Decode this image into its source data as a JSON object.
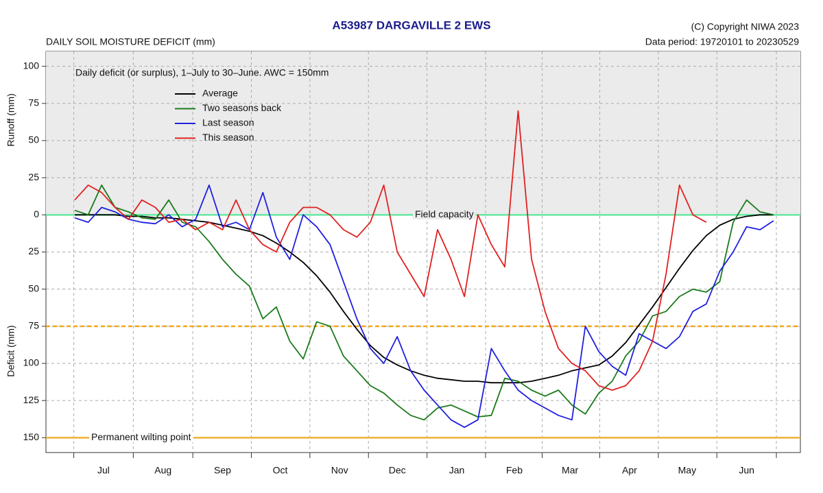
{
  "chart_data": {
    "type": "line",
    "title": "A53987  DARGAVILLE 2 EWS",
    "subtitle": "DAILY SOIL MOISTURE DEFICIT (mm)",
    "copyright": "(C) Copyright NIWA  2023",
    "data_period": "Data period:  19720101  to  20230529",
    "annotation": "Daily deficit (or surplus), 1–July to 30–June.  AWC = 150mm",
    "y_label_top": "Runoff (mm)",
    "y_label_bottom": "Deficit (mm)",
    "xlim": [
      -15,
      378
    ],
    "ylim": [
      -160,
      110
    ],
    "xticks": [
      {
        "value": 15,
        "label": "Jul"
      },
      {
        "value": 46,
        "label": "Aug"
      },
      {
        "value": 77,
        "label": "Sep"
      },
      {
        "value": 107,
        "label": "Oct"
      },
      {
        "value": 138,
        "label": "Nov"
      },
      {
        "value": 168,
        "label": "Dec"
      },
      {
        "value": 199,
        "label": "Jan"
      },
      {
        "value": 229,
        "label": "Feb"
      },
      {
        "value": 258,
        "label": "Mar"
      },
      {
        "value": 289,
        "label": "Apr"
      },
      {
        "value": 319,
        "label": "May"
      },
      {
        "value": 350,
        "label": "Jun"
      }
    ],
    "yticks": [
      100,
      75,
      50,
      25,
      0,
      {
        "value": -25,
        "label": "25"
      },
      {
        "value": -50,
        "label": "50"
      },
      {
        "value": -75,
        "label": "75"
      },
      {
        "value": -100,
        "label": "100"
      },
      {
        "value": -125,
        "label": "125"
      },
      {
        "value": -150,
        "label": "150"
      }
    ],
    "grid": true,
    "reference_lines": [
      {
        "value": 0,
        "label": "Field capacity",
        "color": "#66e8a0",
        "style": "solid"
      },
      {
        "value": -75,
        "color": "#f0a818",
        "style": "dashed"
      },
      {
        "value": -150,
        "label": "Permanent wilting point",
        "color": "#f0b030",
        "style": "solid"
      }
    ],
    "x": [
      0,
      7,
      14,
      21,
      28,
      35,
      42,
      49,
      56,
      63,
      70,
      77,
      84,
      91,
      98,
      105,
      112,
      119,
      126,
      133,
      140,
      147,
      154,
      161,
      168,
      175,
      182,
      189,
      196,
      203,
      210,
      217,
      224,
      231,
      238,
      245,
      252,
      259,
      266,
      273,
      280,
      287,
      294,
      301,
      308,
      315,
      322,
      329,
      336,
      343,
      350,
      357,
      364
    ],
    "series": [
      {
        "name": "Average",
        "color": "#000000",
        "values": [
          0,
          0,
          0,
          0,
          -1,
          -1,
          -2,
          -2,
          -3,
          -4,
          -5,
          -7,
          -9,
          -11,
          -14,
          -19,
          -25,
          -32,
          -41,
          -52,
          -65,
          -77,
          -88,
          -96,
          -101,
          -105,
          -108,
          -110,
          -111,
          -112,
          -112,
          -113,
          -113,
          -113,
          -112,
          -110,
          -108,
          -105,
          -103,
          -101,
          -95,
          -86,
          -74,
          -62,
          -49,
          -36,
          -24,
          -14,
          -7,
          -3,
          -1,
          0,
          0
        ]
      },
      {
        "name": "Two seasons back",
        "color": "#1a7a1a",
        "values": [
          3,
          0,
          20,
          5,
          2,
          -2,
          -3,
          10,
          -5,
          -8,
          -18,
          -30,
          -40,
          -48,
          -70,
          -62,
          -85,
          -97,
          -72,
          -75,
          -95,
          -105,
          -115,
          -120,
          -128,
          -135,
          -138,
          -130,
          -128,
          -132,
          -136,
          -135,
          -110,
          -112,
          -118,
          -122,
          -118,
          -128,
          -134,
          -120,
          -112,
          -95,
          -85,
          -68,
          -65,
          -55,
          -50,
          -52,
          -45,
          -5,
          10,
          2,
          0
        ]
      },
      {
        "name": "Last season",
        "color": "#1f1fe0",
        "values": [
          -2,
          -5,
          5,
          2,
          -3,
          -5,
          -6,
          0,
          -8,
          -3,
          20,
          -8,
          -5,
          -10,
          15,
          -15,
          -30,
          0,
          -8,
          -20,
          -45,
          -70,
          -90,
          -100,
          -82,
          -105,
          -118,
          -128,
          -138,
          -143,
          -138,
          -90,
          -105,
          -118,
          -125,
          -130,
          -135,
          -138,
          -75,
          -92,
          -102,
          -108,
          -80,
          -85,
          -90,
          -82,
          -65,
          -60,
          -38,
          -25,
          -8,
          -10,
          -4
        ]
      },
      {
        "name": "This season",
        "color": "#e02020",
        "values": [
          10,
          20,
          15,
          5,
          -3,
          10,
          5,
          -5,
          -3,
          -10,
          -5,
          -10,
          10,
          -10,
          -20,
          -25,
          -5,
          5,
          5,
          0,
          -10,
          -15,
          -5,
          20,
          -25,
          -40,
          -55,
          -10,
          -30,
          -55,
          0,
          -20,
          -35,
          70,
          -30,
          -65,
          -90,
          -100,
          -105,
          -115,
          -118,
          -115,
          -105,
          -85,
          -40,
          20,
          0,
          -5,
          null,
          null,
          null,
          null,
          null
        ]
      }
    ]
  }
}
